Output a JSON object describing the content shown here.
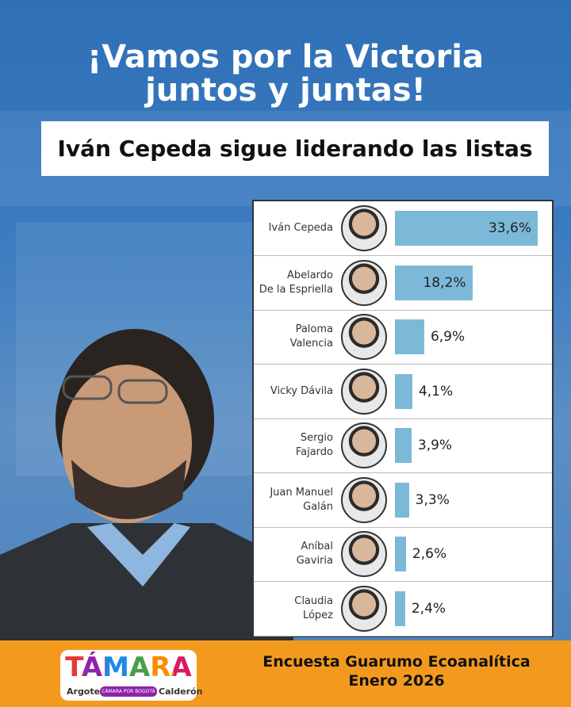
{
  "header": {
    "title_line1": "¡Vamos por la Victoria",
    "title_line2": "juntos y juntas!",
    "subtitle": "Iván Cepeda sigue liderando las listas"
  },
  "chart_data": {
    "type": "bar",
    "categories": [
      "Iván Cepeda",
      "Abelardo\nDe la Espriella",
      "Paloma\nValencia",
      "Vicky Dávila",
      "Sergio\nFajardo",
      "Juan Manuel\nGalán",
      "Aníbal\nGaviria",
      "Claudia\nLópez"
    ],
    "values": [
      33.6,
      18.2,
      6.9,
      4.1,
      3.9,
      3.3,
      2.6,
      2.4
    ],
    "value_labels": [
      "33,6%",
      "18,2%",
      "6,9%",
      "4,1%",
      "3,9%",
      "3,3%",
      "2,6%",
      "2,4%"
    ],
    "color": "#7cb9d8"
  },
  "footer": {
    "logo_name": "TÁMARA",
    "logo_left": "Argote",
    "logo_tagline": "CÁMARA POR BOGOTÁ",
    "logo_right": "Calderón",
    "source_line1": "Encuesta Guarumo Ecoanalítica",
    "source_line2": "Enero 2026"
  }
}
